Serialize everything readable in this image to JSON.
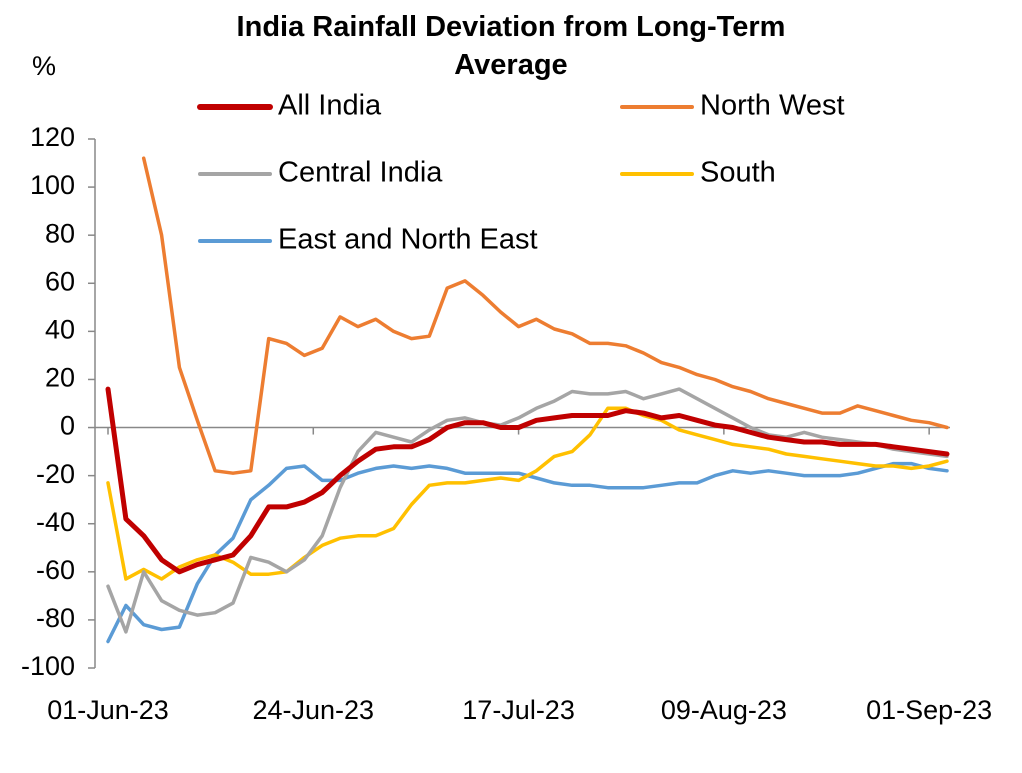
{
  "chart_data": {
    "type": "line",
    "title": "India Rainfall Deviation from Long-Term Average",
    "y_label": "%",
    "x": [
      "01-Jun-23",
      "03-Jun-23",
      "05-Jun-23",
      "07-Jun-23",
      "09-Jun-23",
      "11-Jun-23",
      "13-Jun-23",
      "15-Jun-23",
      "17-Jun-23",
      "19-Jun-23",
      "21-Jun-23",
      "23-Jun-23",
      "25-Jun-23",
      "27-Jun-23",
      "29-Jun-23",
      "01-Jul-23",
      "03-Jul-23",
      "05-Jul-23",
      "07-Jul-23",
      "09-Jul-23",
      "11-Jul-23",
      "13-Jul-23",
      "15-Jul-23",
      "17-Jul-23",
      "19-Jul-23",
      "21-Jul-23",
      "23-Jul-23",
      "25-Jul-23",
      "27-Jul-23",
      "29-Jul-23",
      "31-Jul-23",
      "02-Aug-23",
      "04-Aug-23",
      "06-Aug-23",
      "08-Aug-23",
      "10-Aug-23",
      "12-Aug-23",
      "14-Aug-23",
      "16-Aug-23",
      "18-Aug-23",
      "20-Aug-23",
      "22-Aug-23",
      "24-Aug-23",
      "26-Aug-23",
      "28-Aug-23",
      "30-Aug-23",
      "01-Sep-23",
      "03-Sep-23"
    ],
    "series": [
      {
        "name": "All India",
        "color": "#c00000",
        "values": [
          16,
          -38,
          -45,
          -55,
          -60,
          -57,
          -55,
          -53,
          -45,
          -33,
          -33,
          -31,
          -27,
          -20,
          -14,
          -9,
          -8,
          -8,
          -5,
          0,
          2,
          2,
          0,
          0,
          3,
          4,
          5,
          5,
          5,
          7,
          6,
          4,
          5,
          3,
          1,
          0,
          -2,
          -4,
          -5,
          -6,
          -6,
          -7,
          -7,
          -7,
          -8,
          -9,
          -10,
          -11
        ]
      },
      {
        "name": "North West",
        "color": "#ed7d31",
        "values": [
          null,
          null,
          112,
          80,
          25,
          3,
          -18,
          -19,
          -18,
          37,
          35,
          30,
          33,
          46,
          42,
          45,
          40,
          37,
          38,
          58,
          61,
          55,
          48,
          42,
          45,
          41,
          39,
          35,
          35,
          34,
          31,
          27,
          25,
          22,
          20,
          17,
          15,
          12,
          10,
          8,
          6,
          6,
          9,
          7,
          5,
          3,
          2,
          0
        ]
      },
      {
        "name": "Central India",
        "color": "#a5a5a5",
        "values": [
          -66,
          -85,
          -60,
          -72,
          -76,
          -78,
          -77,
          -73,
          -54,
          -56,
          -60,
          -55,
          -45,
          -25,
          -10,
          -2,
          -4,
          -6,
          -1,
          3,
          4,
          2,
          1,
          4,
          8,
          11,
          15,
          14,
          14,
          15,
          12,
          14,
          16,
          12,
          8,
          4,
          0,
          -3,
          -4,
          -2,
          -4,
          -5,
          -6,
          -7,
          -9,
          -10,
          -11,
          -12
        ]
      },
      {
        "name": "South",
        "color": "#ffc000",
        "values": [
          -23,
          -63,
          -59,
          -63,
          -58,
          -55,
          -53,
          -56,
          -61,
          -61,
          -60,
          -54,
          -49,
          -46,
          -45,
          -45,
          -42,
          -32,
          -24,
          -23,
          -23,
          -22,
          -21,
          -22,
          -18,
          -12,
          -10,
          -3,
          8,
          8,
          5,
          3,
          -1,
          -3,
          -5,
          -7,
          -8,
          -9,
          -11,
          -12,
          -13,
          -14,
          -15,
          -16,
          -16,
          -17,
          -16,
          -14
        ]
      },
      {
        "name": "East and North East",
        "color": "#5b9bd5",
        "values": [
          -89,
          -74,
          -82,
          -84,
          -83,
          -65,
          -53,
          -46,
          -30,
          -24,
          -17,
          -16,
          -22,
          -22,
          -19,
          -17,
          -16,
          -17,
          -16,
          -17,
          -19,
          -19,
          -19,
          -19,
          -21,
          -23,
          -24,
          -24,
          -25,
          -25,
          -25,
          -24,
          -23,
          -23,
          -20,
          -18,
          -19,
          -18,
          -19,
          -20,
          -20,
          -20,
          -19,
          -17,
          -15,
          -15,
          -17,
          -18
        ]
      }
    ],
    "xlim": [
      "01-Jun-23",
      "03-Sep-23"
    ],
    "xticks": [
      "01-Jun-23",
      "24-Jun-23",
      "17-Jul-23",
      "09-Aug-23",
      "01-Sep-23"
    ],
    "ylim": [
      -100,
      120
    ],
    "yticks": [
      -100,
      -80,
      -60,
      -40,
      -20,
      0,
      20,
      40,
      60,
      80,
      100,
      120
    ],
    "grid": false,
    "legend": "top"
  }
}
